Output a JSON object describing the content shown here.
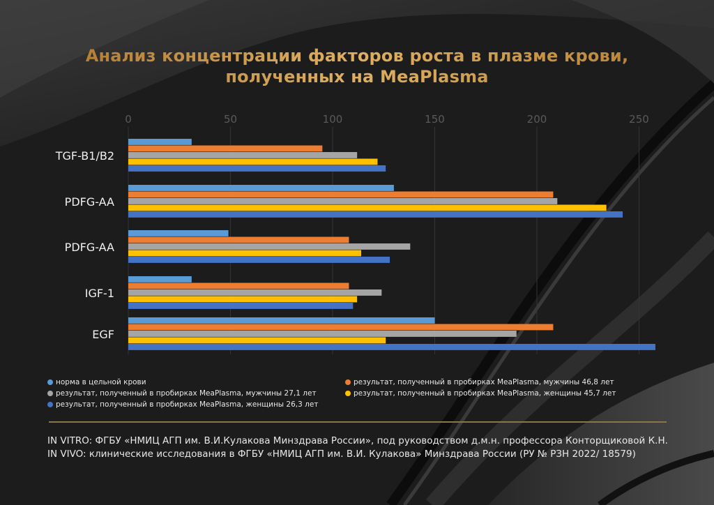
{
  "title": {
    "line1": "Анализ концентрации факторов роста в плазме крови,",
    "line2": "полученных на MeaPlasma"
  },
  "chart_data": {
    "type": "bar",
    "orientation": "horizontal",
    "categories": [
      "TGF-B1/B2",
      "PDFG-AA",
      "PDFG-AA",
      "IGF-1",
      "EGF"
    ],
    "xticks": [
      "0",
      "50",
      "100",
      "150",
      "200",
      "250"
    ],
    "xlim": [
      0,
      260
    ],
    "axis_position": "top",
    "grid": true,
    "legend_position": "bottom",
    "series": [
      {
        "name": "норма в цельной крови",
        "color": "#5b9bd5",
        "values": [
          31,
          130,
          49,
          31,
          150
        ]
      },
      {
        "name": "результат, полученный в пробирках MeaPlasma, мужчины 46,8 лет",
        "color": "#ed7d31",
        "values": [
          95,
          208,
          108,
          108,
          208
        ]
      },
      {
        "name": "результат, полученный в пробирках MeaPlasma, мужчины 27,1 лет",
        "color": "#a5a5a5",
        "values": [
          112,
          210,
          138,
          124,
          190
        ]
      },
      {
        "name": "результат, полученный в пробирках MeaPlasma, женщины 45,7 лет",
        "color": "#ffc000",
        "values": [
          122,
          234,
          114,
          112,
          126
        ]
      },
      {
        "name": "результат, полученный в пробирках MeaPlasma, женщины 26,3 лет",
        "color": "#4472c4",
        "values": [
          126,
          242,
          128,
          110,
          258
        ]
      }
    ]
  },
  "footer": {
    "in_vitro": "IN VITRO: ФГБУ «НМИЦ АГП им. В.И.Кулакова Минздрава России», под руководством д.м.н. профессора Конторщиковой К.Н.",
    "in_vivo": "IN VIVO: клинические исследования в ФГБУ «НМИЦ АГП им. В.И. Кулакова» Минздрава России (РУ № РЗН 2022/ 18579)"
  },
  "colors": {
    "background": "#1c1c1c",
    "title": "#c8913a",
    "divider": "#8c7548"
  }
}
